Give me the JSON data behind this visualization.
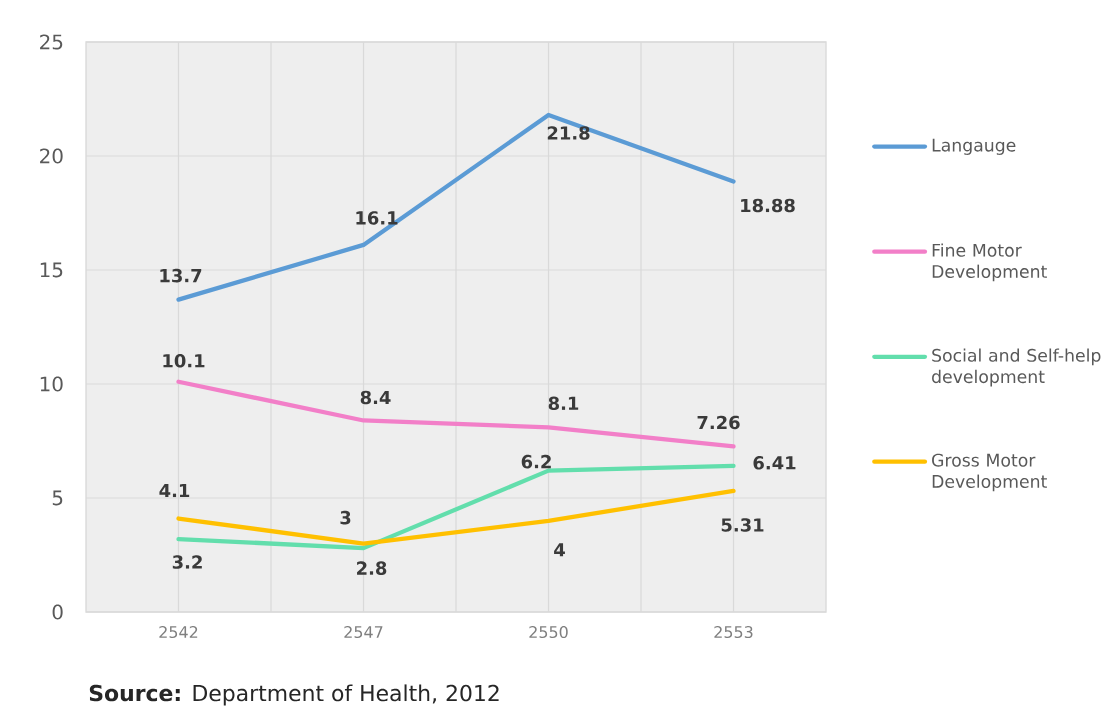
{
  "chart_data": {
    "type": "line",
    "categories": [
      "2542",
      "2547",
      "2550",
      "2553"
    ],
    "series": [
      {
        "name": "Langauge",
        "color": "#5b9bd5",
        "values": [
          13.7,
          16.1,
          21.8,
          18.88
        ]
      },
      {
        "name": "Fine Motor Development",
        "color": "#f27fc8",
        "values": [
          10.1,
          8.4,
          8.1,
          7.26
        ]
      },
      {
        "name": "Social and Self-help development",
        "color": "#62deac",
        "values": [
          3.2,
          2.8,
          6.2,
          6.41
        ]
      },
      {
        "name": "Gross Motor Development",
        "color": "#ffc000",
        "values": [
          4.1,
          3,
          4,
          5.31
        ]
      }
    ],
    "ylim": [
      0,
      25
    ],
    "yticks": [
      0,
      5,
      10,
      15,
      20,
      25
    ],
    "grid": true,
    "legend": "right",
    "data_labels": true,
    "annotations": [
      "**Source:** Department of Health, 2012"
    ]
  }
}
